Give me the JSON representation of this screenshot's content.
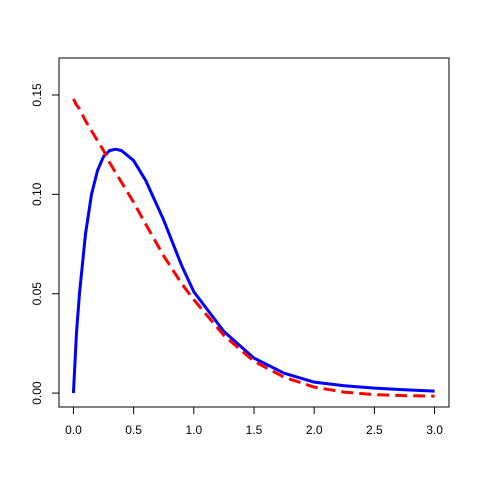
{
  "chart_data": {
    "type": "line",
    "x": [
      0,
      0.025,
      0.05,
      0.1,
      0.15,
      0.2,
      0.25,
      0.3,
      0.35,
      0.4,
      0.5,
      0.6,
      0.75,
      0.9,
      1.0,
      1.25,
      1.5,
      1.75,
      2.0,
      2.25,
      2.5,
      2.75,
      3.0
    ],
    "series": [
      {
        "color": "#0000ff",
        "dash": "solid",
        "values": [
          0,
          0.03,
          0.05,
          0.08,
          0.1,
          0.112,
          0.119,
          0.122,
          0.1227,
          0.122,
          0.117,
          0.107,
          0.087,
          0.064,
          0.051,
          0.031,
          0.0176,
          0.01,
          0.0055,
          0.0037,
          0.0025,
          0.0017,
          0.001
        ]
      },
      {
        "color": "#ff0000",
        "dash": "dashed",
        "values": [
          0.148,
          0.145,
          0.143,
          0.137,
          0.132,
          0.127,
          0.122,
          0.116,
          0.111,
          0.106,
          0.096,
          0.085,
          0.069,
          0.055,
          0.047,
          0.029,
          0.016,
          0.008,
          0.003,
          0.0005,
          -0.0008,
          -0.0013,
          -0.0015
        ]
      }
    ],
    "xlim": [
      -0.12,
      3.12
    ],
    "ylim": [
      -0.007,
      0.1686
    ],
    "xticks": [
      {
        "value": 0,
        "label": "0.0"
      },
      {
        "value": 0.5,
        "label": "0.5"
      },
      {
        "value": 1,
        "label": "1.0"
      },
      {
        "value": 1.5,
        "label": "1.5"
      },
      {
        "value": 2,
        "label": "2.0"
      },
      {
        "value": 2.5,
        "label": "2.5"
      },
      {
        "value": 3,
        "label": "3.0"
      }
    ],
    "yticks": [
      {
        "value": 0,
        "label": "0.00"
      },
      {
        "value": 0.05,
        "label": "0.05"
      },
      {
        "value": 0.1,
        "label": "0.10"
      },
      {
        "value": 0.15,
        "label": "0.15"
      }
    ]
  }
}
